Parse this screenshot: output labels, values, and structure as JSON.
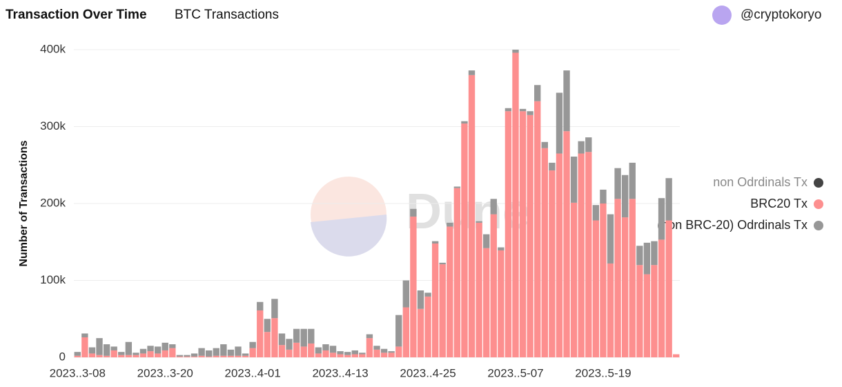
{
  "chart_data": {
    "type": "stacked_bar",
    "title": "Transaction Over Time",
    "subtitle": "BTC Transactions",
    "author": "@cryptokoryo",
    "watermark": "Dune",
    "y_label": "Number of Transactions",
    "categories": [
      "2023..3-08",
      null,
      null,
      null,
      null,
      null,
      null,
      null,
      null,
      null,
      null,
      null,
      "2023..3-20",
      null,
      null,
      null,
      null,
      null,
      null,
      null,
      null,
      null,
      null,
      null,
      "2023..4-01",
      null,
      null,
      null,
      null,
      null,
      null,
      null,
      null,
      null,
      null,
      null,
      "2023..4-13",
      null,
      null,
      null,
      null,
      null,
      null,
      null,
      null,
      null,
      null,
      null,
      "2023..4-25",
      null,
      null,
      null,
      null,
      null,
      null,
      null,
      null,
      null,
      null,
      null,
      "2023..5-07",
      null,
      null,
      null,
      null,
      null,
      null,
      null,
      null,
      null,
      null,
      null,
      "2023..5-19",
      null,
      null,
      null,
      null,
      null,
      null,
      null,
      null,
      null,
      null
    ],
    "hidden_series": [
      {
        "name": "non Odrdinals Tx",
        "color": "#444444"
      }
    ],
    "series": [
      {
        "name": "BRC20 Tx",
        "color": "#fd8f8f",
        "values": [
          2000,
          26000,
          5000,
          3000,
          2000,
          9000,
          3000,
          3000,
          3000,
          5000,
          8000,
          5000,
          9000,
          12000,
          1000,
          1000,
          1000,
          2000,
          1000,
          2000,
          2000,
          2000,
          2000,
          2000,
          12000,
          61000,
          33000,
          51000,
          16000,
          10000,
          19000,
          14000,
          18000,
          5000,
          9000,
          6000,
          4000,
          3000,
          4000,
          4000,
          25000,
          10000,
          6000,
          6000,
          14000,
          65000,
          183000,
          63000,
          79000,
          148000,
          121000,
          170000,
          220000,
          304000,
          367000,
          175000,
          142000,
          186000,
          139000,
          320000,
          396000,
          320000,
          315000,
          333000,
          272000,
          243000,
          265000,
          294000,
          201000,
          265000,
          267000,
          178000,
          200000,
          122000,
          206000,
          182000,
          206000,
          120000,
          108000,
          120000,
          153000,
          178000,
          4000
        ]
      },
      {
        "name": "(non BRC-20) Odrdinals Tx",
        "color": "#979797",
        "values": [
          5000,
          5000,
          8000,
          22000,
          15000,
          5000,
          4000,
          17000,
          3000,
          6000,
          7000,
          9000,
          10000,
          5000,
          2000,
          2000,
          4000,
          10000,
          8000,
          10000,
          15000,
          8000,
          12000,
          3000,
          8000,
          11000,
          17000,
          25000,
          15000,
          14000,
          18000,
          23000,
          19000,
          8000,
          8000,
          9000,
          4000,
          4000,
          5000,
          2000,
          5000,
          5000,
          5000,
          2000,
          41000,
          35000,
          10000,
          24000,
          5000,
          3000,
          2000,
          5000,
          2000,
          3000,
          6000,
          2000,
          18000,
          20000,
          4000,
          4000,
          4000,
          3000,
          5000,
          21000,
          8000,
          10000,
          79000,
          79000,
          60000,
          16000,
          19000,
          20000,
          18000,
          64000,
          40000,
          55000,
          47000,
          25000,
          41000,
          31000,
          54000,
          55000,
          0
        ]
      }
    ],
    "ylim": [
      0,
      400000
    ],
    "yticks": [
      0,
      {
        "value": 100000,
        "label": "100k"
      },
      {
        "value": 200000,
        "label": "200k"
      },
      {
        "value": 300000,
        "label": "300k"
      },
      {
        "value": 400000,
        "label": "400k"
      }
    ],
    "grid": true,
    "legend": "right"
  }
}
